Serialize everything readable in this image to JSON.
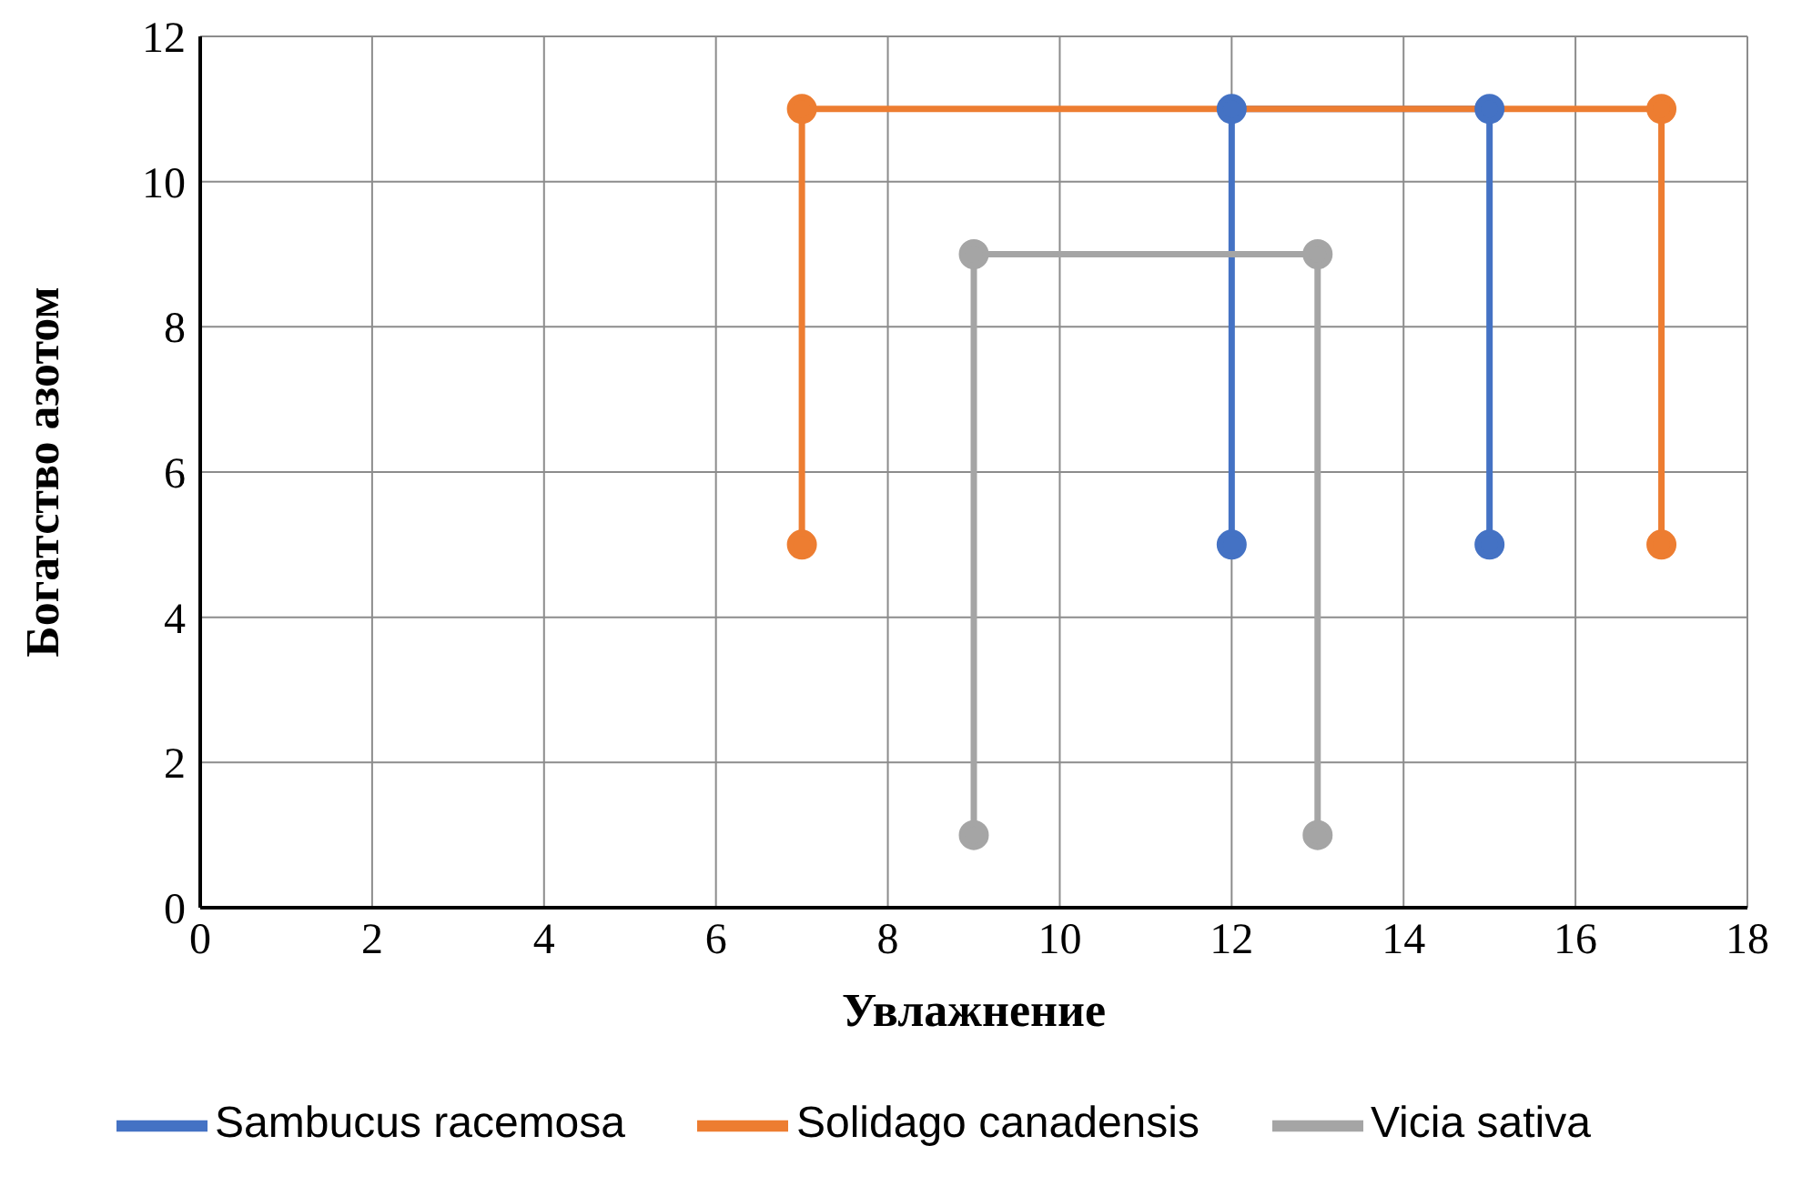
{
  "chart_data": {
    "type": "line",
    "xlabel": "Увлажнение",
    "ylabel": "Богатство азотом",
    "series": [
      {
        "name": "Sambucus racemosa",
        "color": "#4472c4",
        "x": [
          12,
          12,
          15,
          15
        ],
        "values": [
          5,
          11,
          11,
          5
        ]
      },
      {
        "name": "Solidago canadensis",
        "color": "#ed7d31",
        "x": [
          7,
          7,
          17,
          17
        ],
        "values": [
          5,
          11,
          11,
          5
        ]
      },
      {
        "name": "Vicia sativa",
        "color": "#a5a5a5",
        "x": [
          9,
          9,
          13,
          13
        ],
        "values": [
          1,
          9,
          9,
          1
        ]
      }
    ],
    "xlim": [
      0,
      18
    ],
    "xticks": [
      0,
      2,
      4,
      6,
      8,
      10,
      12,
      14,
      16,
      18
    ],
    "ylim": [
      0,
      12
    ],
    "yticks": [
      0,
      2,
      4,
      6,
      8,
      10,
      12
    ],
    "grid": true,
    "legend": "bottom",
    "marker": "circle",
    "line_style": "solid"
  }
}
